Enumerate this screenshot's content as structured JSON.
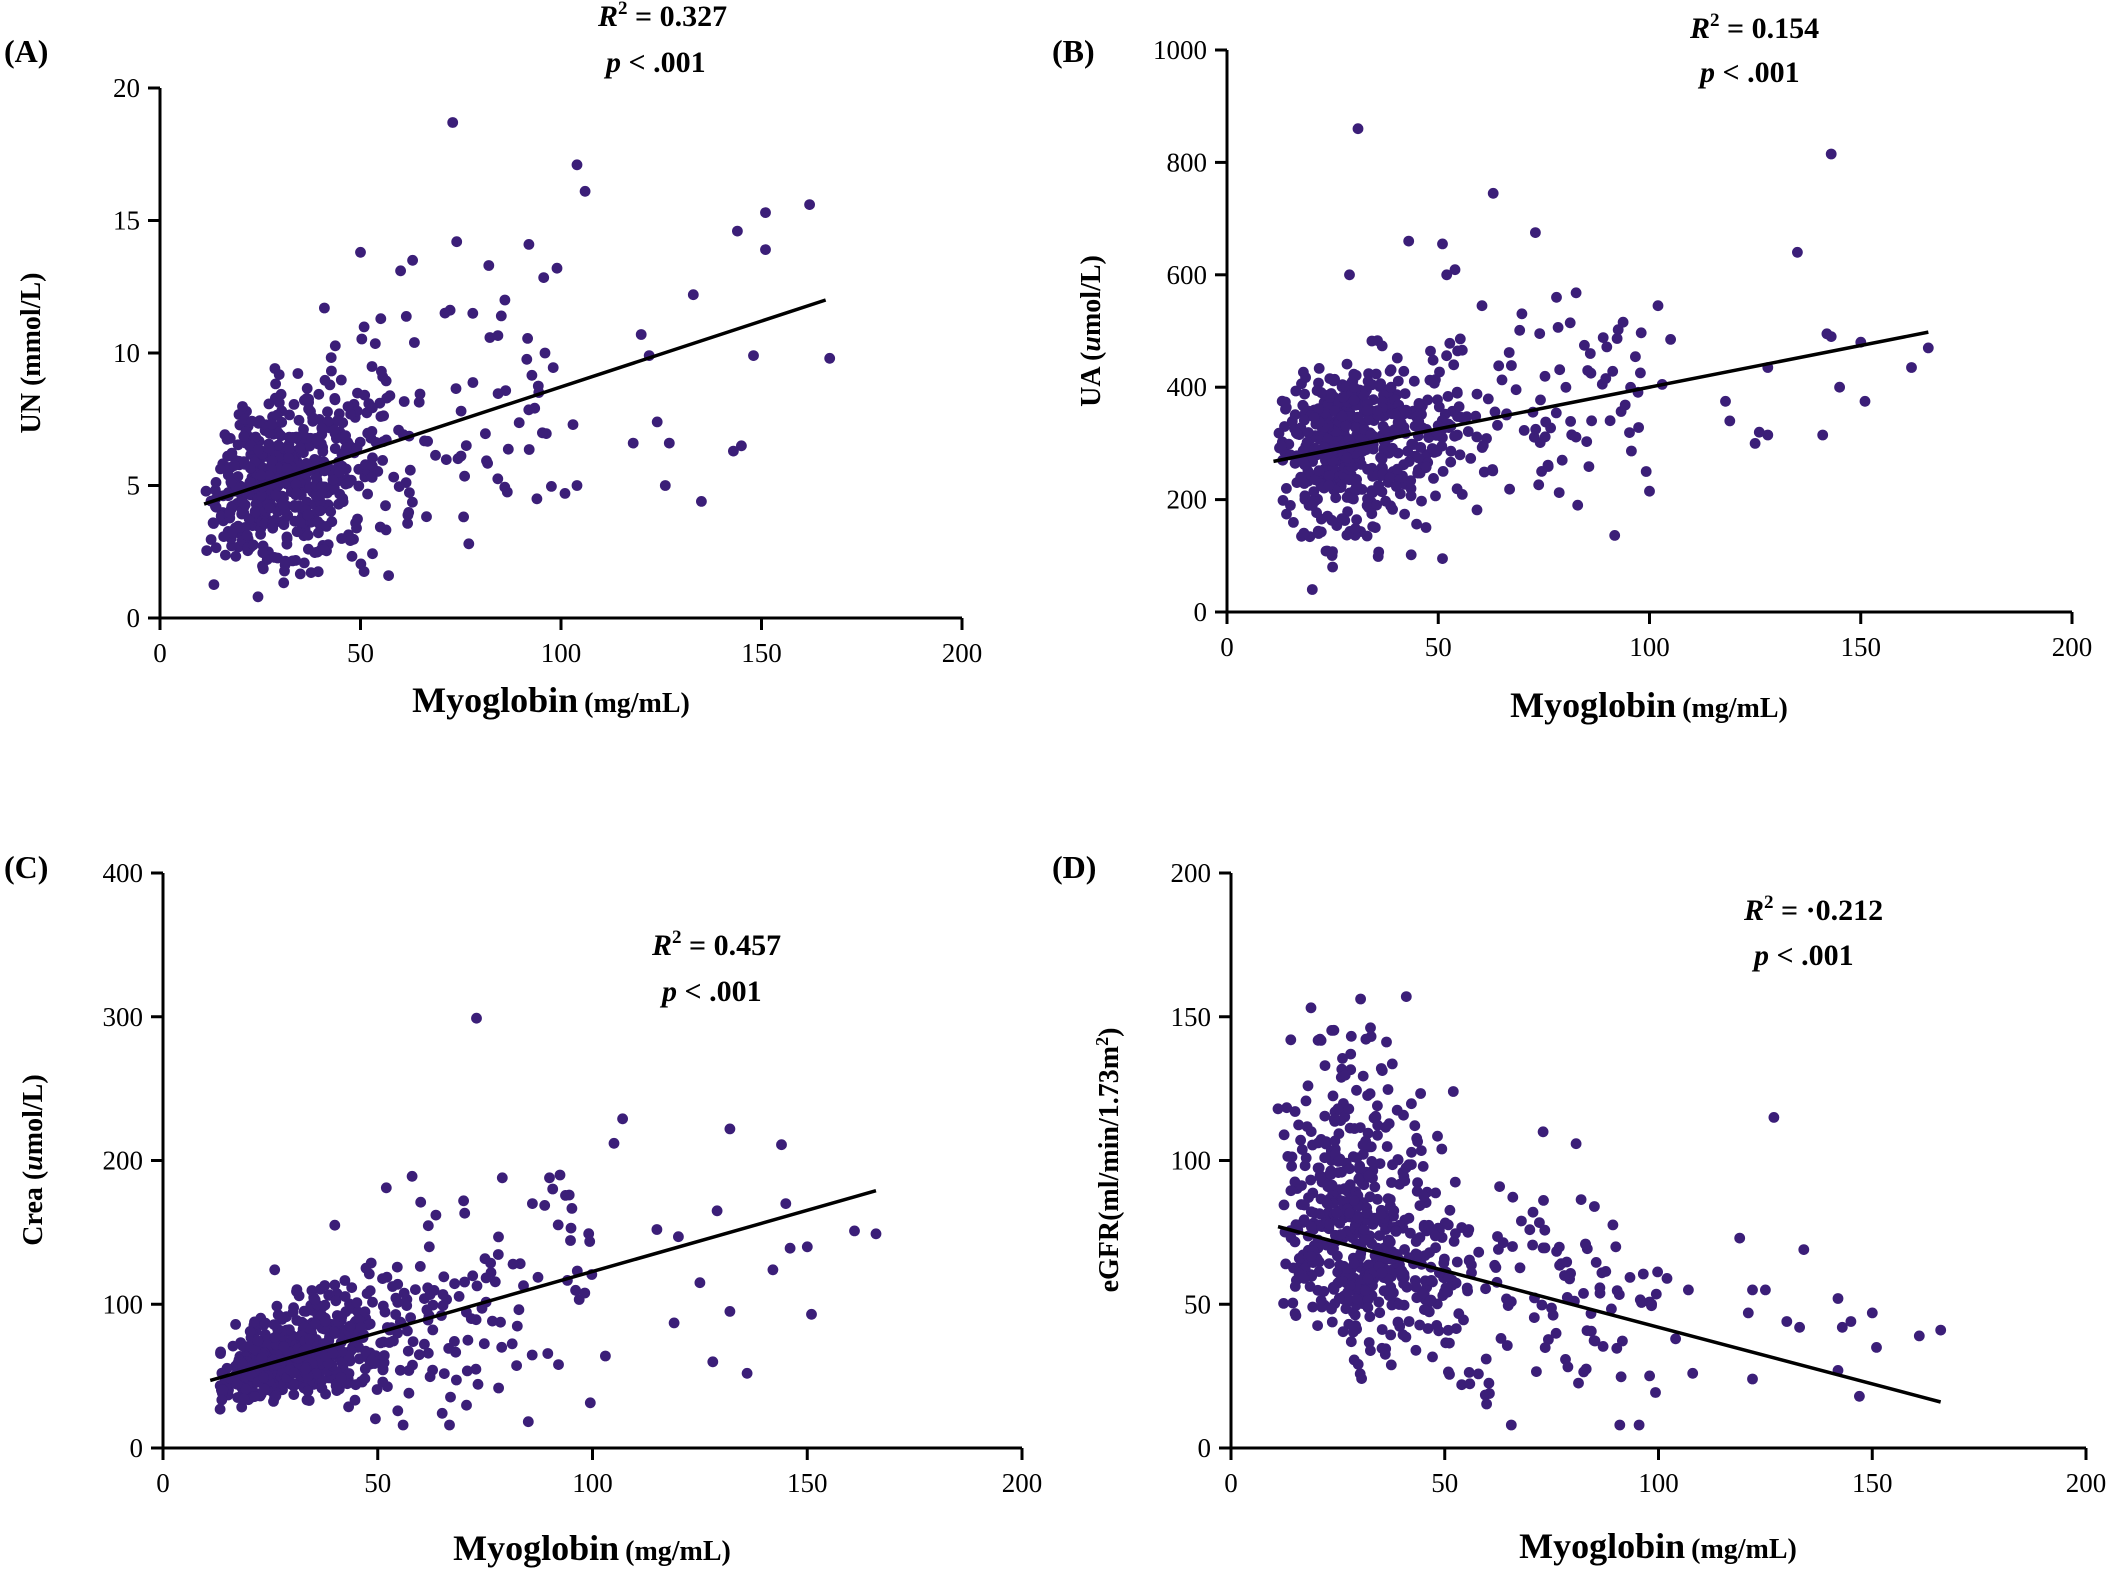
{
  "figure": {
    "background": "#ffffff",
    "point_color": "#3b1e78",
    "line_color": "#000000"
  },
  "chart_data": [
    {
      "panel": "(A)",
      "type": "scatter",
      "xlabel": "Myoglobin",
      "xlabel_unit": "(mg/mL)",
      "ylabel": "UN (mmol/L)",
      "ylabel_italic": "",
      "ylabel_pre": "UN (mmol/L)",
      "ylabel_post": "",
      "xlim": [
        0,
        200
      ],
      "ylim": [
        0,
        20
      ],
      "xticks": [
        0,
        50,
        100,
        150,
        200
      ],
      "yticks": [
        0,
        5,
        10,
        15,
        20
      ],
      "r2_label": "R",
      "r2_sup": "2",
      "r2_value": " =  0.327",
      "p_label": "p",
      "p_value": " < .001",
      "fit_line": {
        "x": [
          11,
          166
        ],
        "y": [
          4.3,
          12.0
        ]
      },
      "points_seed": 1,
      "points_count": 620,
      "points": [
        [
          73,
          18.7
        ],
        [
          104,
          17.1
        ],
        [
          106,
          16.1
        ],
        [
          162,
          15.6
        ],
        [
          151,
          15.3
        ],
        [
          151,
          13.9
        ],
        [
          144,
          14.6
        ],
        [
          167,
          9.8
        ],
        [
          148,
          9.9
        ],
        [
          145,
          6.5
        ],
        [
          143,
          6.3
        ],
        [
          135,
          4.4
        ],
        [
          126,
          5.0
        ],
        [
          133,
          12.2
        ],
        [
          127,
          6.6
        ],
        [
          120,
          10.7
        ],
        [
          122,
          9.9
        ],
        [
          57,
          1.6
        ],
        [
          77,
          2.8
        ],
        [
          99,
          13.2
        ],
        [
          92,
          14.1
        ],
        [
          74,
          14.2
        ],
        [
          50,
          13.8
        ],
        [
          41,
          11.7
        ],
        [
          60,
          13.1
        ],
        [
          63,
          13.5
        ],
        [
          78,
          11.5
        ],
        [
          82,
          13.3
        ],
        [
          86,
          12.0
        ],
        [
          96,
          10.0
        ],
        [
          101,
          4.7
        ],
        [
          104,
          5.0
        ],
        [
          94,
          4.5
        ],
        [
          103,
          7.3
        ],
        [
          118,
          6.6
        ],
        [
          124,
          7.4
        ]
      ]
    },
    {
      "panel": "(B)",
      "type": "scatter",
      "xlabel": "Myoglobin",
      "xlabel_unit": "(mg/mL)",
      "ylabel": "UA (umol/L)",
      "ylabel_italic": "u",
      "ylabel_pre": "UA (",
      "ylabel_post": "mol/L)",
      "xlim": [
        0,
        200
      ],
      "ylim": [
        0,
        1000
      ],
      "xticks": [
        0,
        50,
        100,
        150,
        200
      ],
      "yticks": [
        0,
        200,
        400,
        600,
        800,
        1000
      ],
      "r2_label": "R",
      "r2_sup": "2",
      "r2_value": " =  0.154",
      "p_label": "p",
      "p_value": " < .001",
      "fit_line": {
        "x": [
          11,
          166
        ],
        "y": [
          268,
          498
        ]
      },
      "points_seed": 2,
      "points_count": 640,
      "points": [
        [
          31,
          860
        ],
        [
          143,
          815
        ],
        [
          63,
          745
        ],
        [
          73,
          675
        ],
        [
          135,
          640
        ],
        [
          43,
          660
        ],
        [
          29,
          600
        ],
        [
          51,
          655
        ],
        [
          52,
          600
        ],
        [
          100,
          215
        ],
        [
          51,
          95
        ],
        [
          25,
          80
        ],
        [
          166,
          470
        ],
        [
          162,
          435
        ],
        [
          151,
          375
        ],
        [
          150,
          480
        ],
        [
          145,
          400
        ],
        [
          143,
          490
        ],
        [
          142,
          495
        ],
        [
          141,
          315
        ],
        [
          128,
          315
        ],
        [
          126,
          320
        ],
        [
          128,
          435
        ],
        [
          125,
          300
        ],
        [
          118,
          375
        ],
        [
          119,
          340
        ],
        [
          105,
          485
        ],
        [
          102,
          545
        ],
        [
          103,
          405
        ],
        [
          83,
          190
        ],
        [
          78,
          560
        ],
        [
          86,
          460
        ]
      ]
    },
    {
      "panel": "(C)",
      "type": "scatter",
      "xlabel": "Myoglobin",
      "xlabel_unit": "(mg/mL)",
      "ylabel": "Crea (umol/L)",
      "ylabel_italic": "u",
      "ylabel_pre": "Crea (",
      "ylabel_post": "mol/L)",
      "xlim": [
        0,
        200
      ],
      "ylim": [
        0,
        400
      ],
      "xticks": [
        0,
        50,
        100,
        150,
        200
      ],
      "yticks": [
        0,
        100,
        200,
        300,
        400
      ],
      "r2_label": "R",
      "r2_sup": "2",
      "r2_value": " =  0.457",
      "p_label": "p",
      "p_value": " < .001",
      "fit_line": {
        "x": [
          11,
          166
        ],
        "y": [
          47,
          179
        ]
      },
      "points_seed": 3,
      "points_count": 650,
      "points": [
        [
          73,
          299
        ],
        [
          107,
          229
        ],
        [
          105,
          212
        ],
        [
          132,
          222
        ],
        [
          144,
          211
        ],
        [
          129,
          165
        ],
        [
          145,
          170
        ],
        [
          161,
          151
        ],
        [
          166,
          149
        ],
        [
          150,
          140
        ],
        [
          151,
          93
        ],
        [
          136,
          52
        ],
        [
          128,
          60
        ],
        [
          132,
          95
        ],
        [
          119,
          87
        ],
        [
          146,
          139
        ],
        [
          142,
          124
        ],
        [
          120,
          147
        ],
        [
          125,
          115
        ],
        [
          103,
          64
        ],
        [
          90,
          188
        ],
        [
          79,
          188
        ],
        [
          70,
          172
        ],
        [
          58,
          189
        ],
        [
          60,
          171
        ],
        [
          52,
          181
        ],
        [
          40,
          155
        ],
        [
          26,
          124
        ],
        [
          95,
          153
        ],
        [
          86,
          170
        ],
        [
          62,
          140
        ],
        [
          115,
          152
        ]
      ]
    },
    {
      "panel": "(D)",
      "type": "scatter",
      "xlabel": "Myoglobin",
      "xlabel_unit": "(mg/mL)",
      "ylabel": "eGFR(ml/min/1.73m2)",
      "ylabel_italic": "",
      "ylabel_pre": "eGFR(ml/min/1.73m",
      "ylabel_sup": "2",
      "ylabel_post": ")",
      "xlim": [
        0,
        200
      ],
      "ylim": [
        0,
        200
      ],
      "xticks": [
        0,
        50,
        100,
        150,
        200
      ],
      "yticks": [
        0,
        50,
        100,
        150,
        200
      ],
      "r2_label": "R",
      "r2_sup": "2",
      "r2_value": " = ·0.212",
      "p_label": "p",
      "p_value": " < .001",
      "fit_line": {
        "x": [
          11,
          166
        ],
        "y": [
          77,
          16
        ]
      },
      "points_seed": 4,
      "points_count": 640,
      "points": [
        [
          41,
          157
        ],
        [
          14,
          142
        ],
        [
          28,
          137
        ],
        [
          22,
          133
        ],
        [
          52,
          124
        ],
        [
          127,
          115
        ],
        [
          73,
          110
        ],
        [
          11,
          118
        ],
        [
          18,
          126
        ],
        [
          25,
          118
        ],
        [
          119,
          73
        ],
        [
          134,
          69
        ],
        [
          122,
          55
        ],
        [
          125,
          55
        ],
        [
          130,
          44
        ],
        [
          133,
          42
        ],
        [
          121,
          47
        ],
        [
          142,
          52
        ],
        [
          143,
          42
        ],
        [
          145,
          44
        ],
        [
          150,
          47
        ],
        [
          151,
          35
        ],
        [
          147,
          18
        ],
        [
          161,
          39
        ],
        [
          166,
          41
        ],
        [
          142,
          27
        ],
        [
          122,
          24
        ],
        [
          108,
          26
        ],
        [
          104,
          38
        ],
        [
          102,
          59
        ],
        [
          107,
          55
        ],
        [
          85,
          84
        ],
        [
          90,
          70
        ]
      ]
    }
  ]
}
